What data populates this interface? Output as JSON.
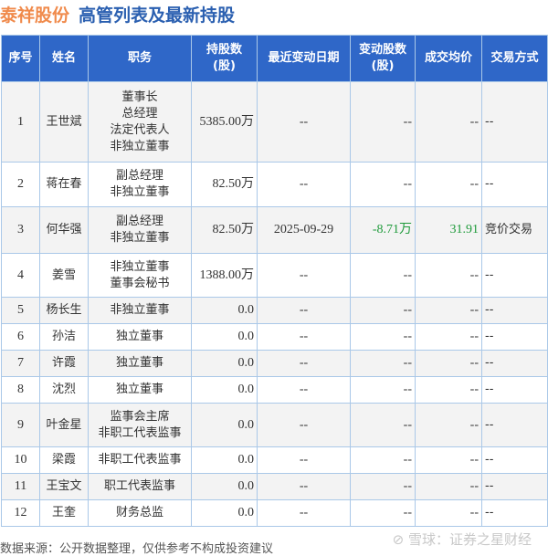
{
  "title": {
    "company": "泰祥股份",
    "subtitle": "高管列表及最新持股"
  },
  "headers": [
    "序号",
    "姓名",
    "职务",
    "持股数\n(股)",
    "最近变动日期",
    "变动股数\n(股)",
    "成交均价",
    "交易方式"
  ],
  "rows": [
    {
      "no": "1",
      "name": "王世斌",
      "roles": [
        "董事长",
        "总经理",
        "法定代表人",
        "非独立董事"
      ],
      "shares": "5385.00万",
      "date": "--",
      "change": "--",
      "price": "--",
      "method": "--"
    },
    {
      "no": "2",
      "name": "蒋在春",
      "roles": [
        "副总经理",
        "非独立董事"
      ],
      "shares": "82.50万",
      "date": "--",
      "change": "--",
      "price": "--",
      "method": "--"
    },
    {
      "no": "3",
      "name": "何华强",
      "roles": [
        "副总经理",
        "非独立董事"
      ],
      "shares": "82.50万",
      "date": "2025-09-29",
      "change": "-8.71万",
      "price": "31.91",
      "method": "竞价交易"
    },
    {
      "no": "4",
      "name": "姜雪",
      "roles": [
        "非独立董事",
        "董事会秘书"
      ],
      "shares": "1388.00万",
      "date": "--",
      "change": "--",
      "price": "--",
      "method": "--"
    },
    {
      "no": "5",
      "name": "杨长生",
      "roles": [
        "非独立董事"
      ],
      "shares": "0.0",
      "date": "--",
      "change": "--",
      "price": "--",
      "method": "--"
    },
    {
      "no": "6",
      "name": "孙洁",
      "roles": [
        "独立董事"
      ],
      "shares": "0.0",
      "date": "--",
      "change": "--",
      "price": "--",
      "method": "--"
    },
    {
      "no": "7",
      "name": "许霞",
      "roles": [
        "独立董事"
      ],
      "shares": "0.0",
      "date": "--",
      "change": "--",
      "price": "--",
      "method": "--"
    },
    {
      "no": "8",
      "name": "沈烈",
      "roles": [
        "独立董事"
      ],
      "shares": "0.0",
      "date": "--",
      "change": "--",
      "price": "--",
      "method": "--"
    },
    {
      "no": "9",
      "name": "叶金星",
      "roles": [
        "监事会主席",
        "非职工代表监事"
      ],
      "shares": "0.0",
      "date": "--",
      "change": "--",
      "price": "--",
      "method": "--"
    },
    {
      "no": "10",
      "name": "梁霞",
      "roles": [
        "非职工代表监事"
      ],
      "shares": "0.0",
      "date": "--",
      "change": "--",
      "price": "--",
      "method": "--"
    },
    {
      "no": "11",
      "name": "王宝文",
      "roles": [
        "职工代表监事"
      ],
      "shares": "0.0",
      "date": "--",
      "change": "--",
      "price": "--",
      "method": "--"
    },
    {
      "no": "12",
      "name": "王奎",
      "roles": [
        "财务总监"
      ],
      "shares": "0.0",
      "date": "--",
      "change": "--",
      "price": "--",
      "method": "--"
    }
  ],
  "footer": "数据来源：公开数据整理，仅供参考不构成投资建议",
  "watermark": "雪球：证券之星财经",
  "colors": {
    "header_bg": "#2f67c8",
    "company": "#f08a4b",
    "subtitle": "#2a5fb0",
    "change": "#1e9a3a"
  }
}
